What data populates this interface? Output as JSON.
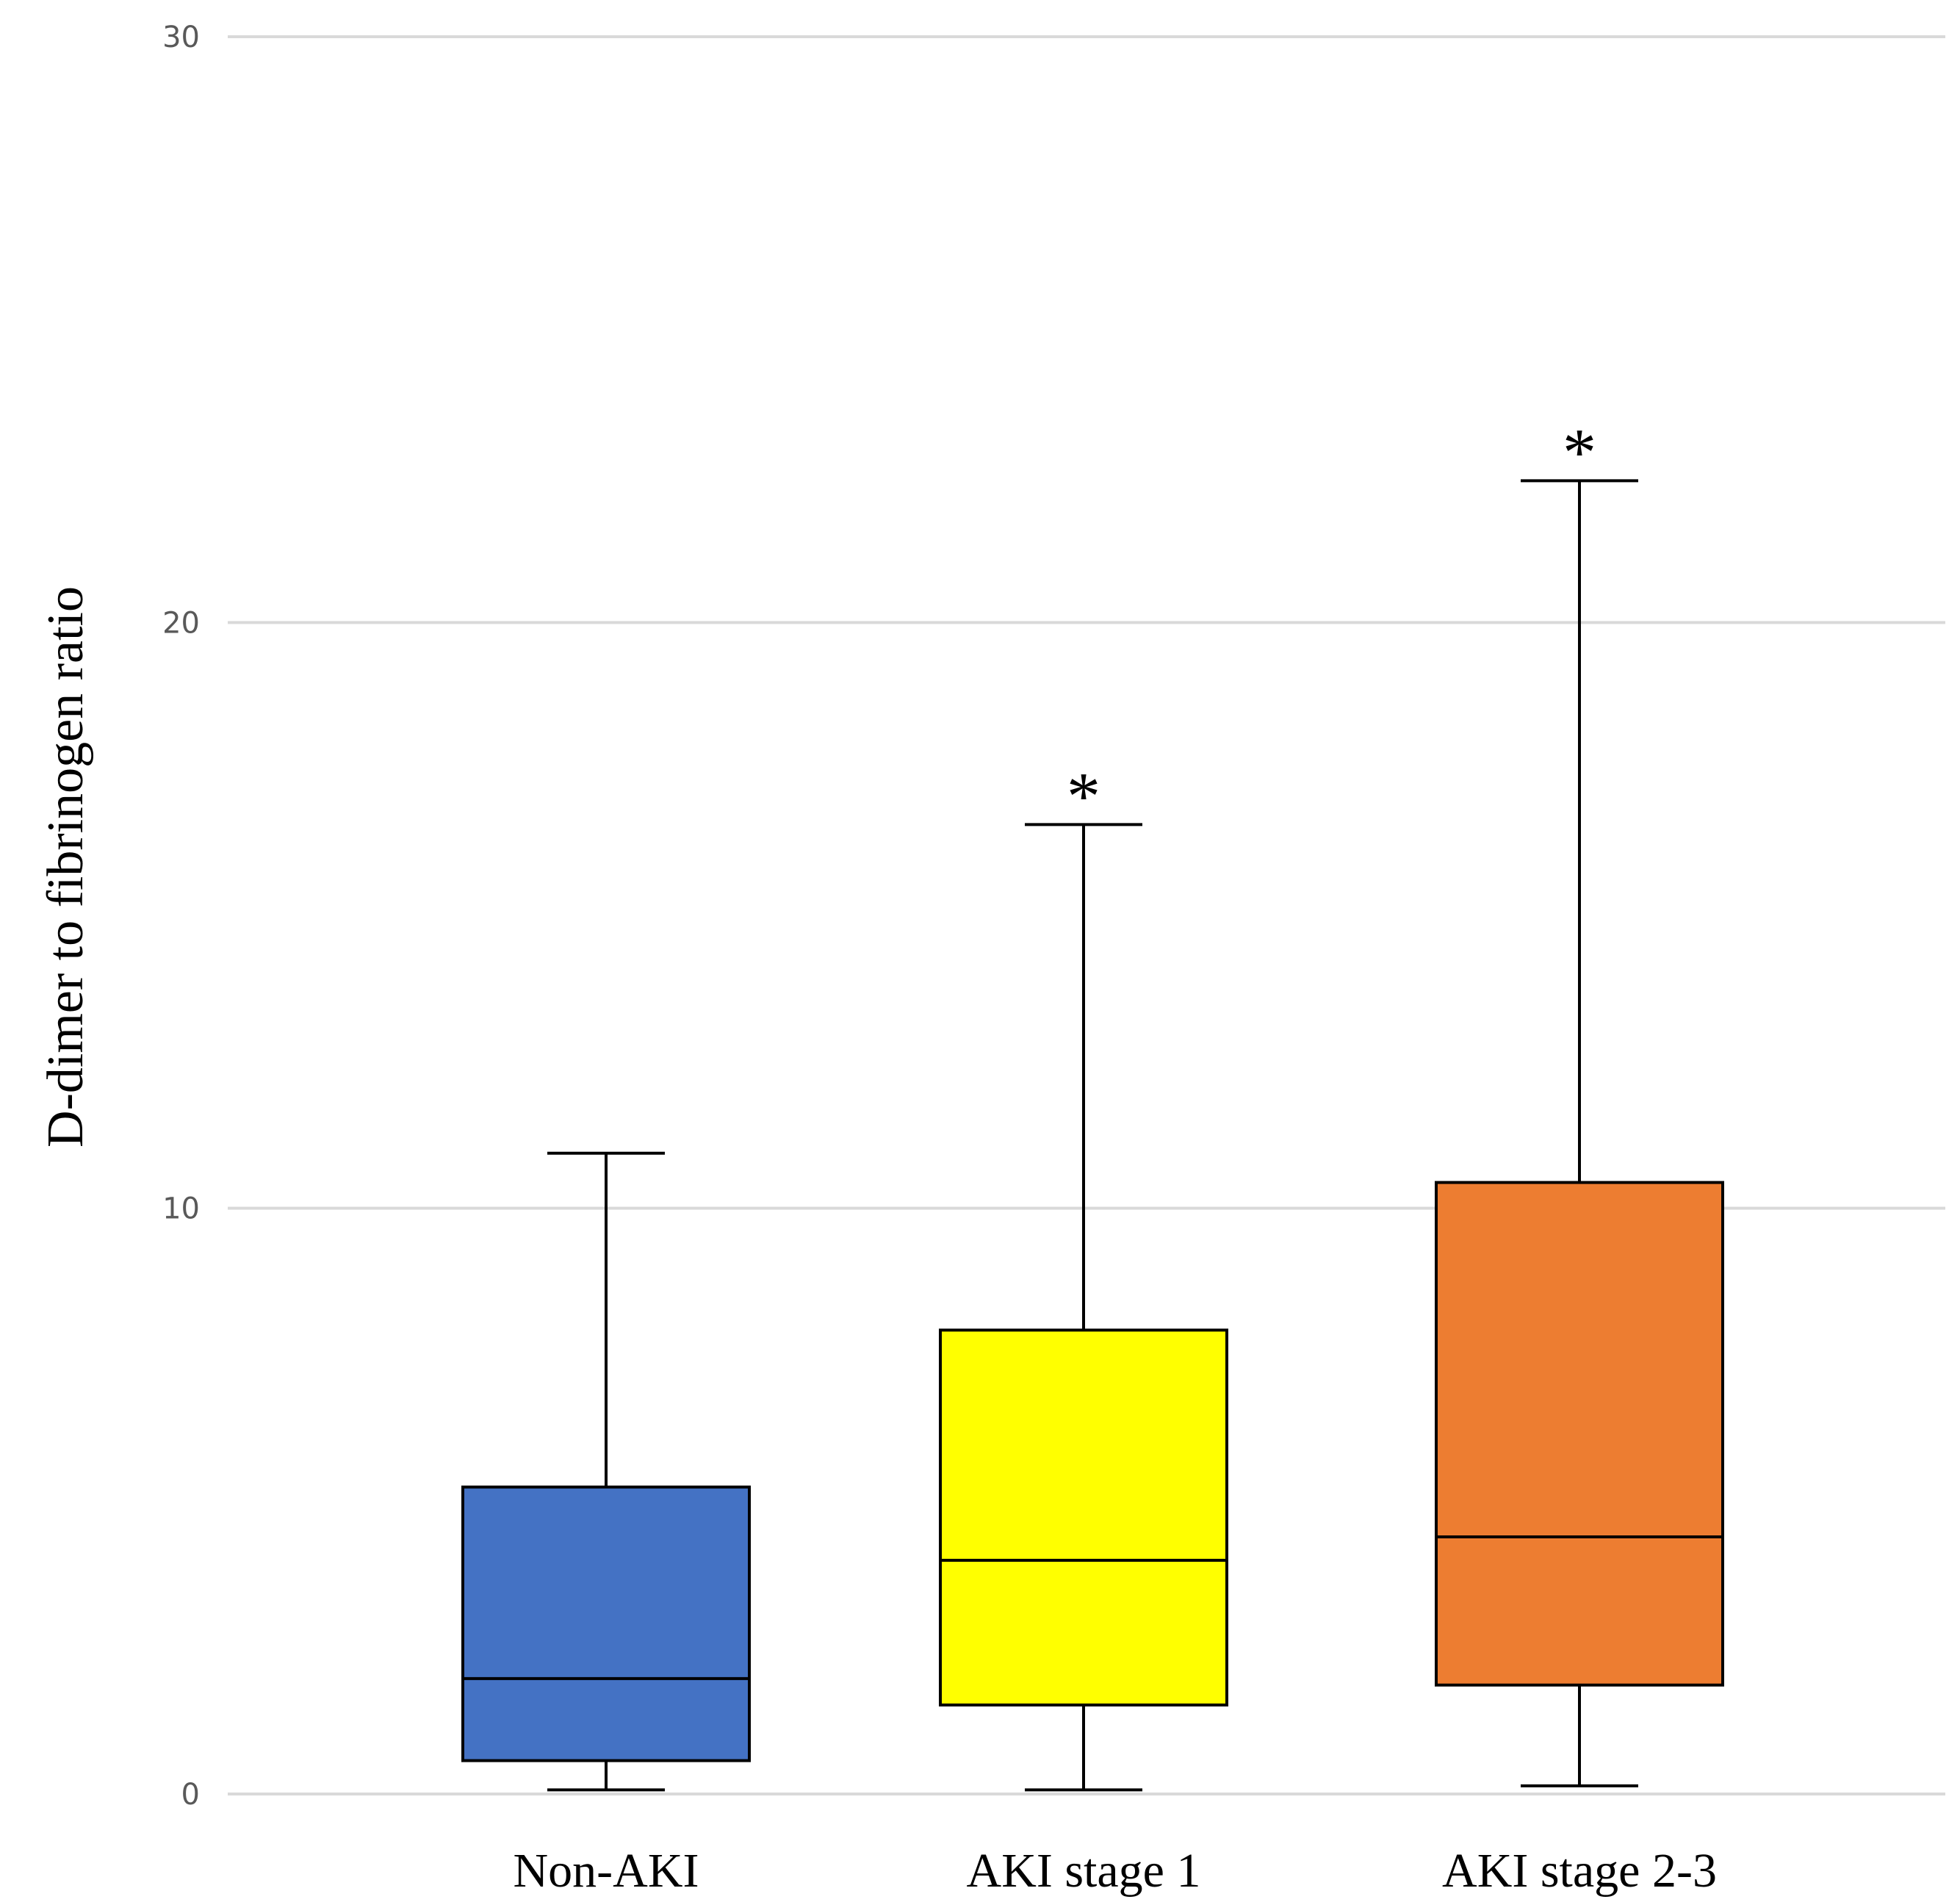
{
  "chart_data": {
    "type": "box",
    "title": "",
    "xlabel": "",
    "ylabel": "D-dimer to fibrinogen ratio",
    "ylim": [
      0,
      30
    ],
    "yticks": [
      0,
      10,
      20,
      30
    ],
    "grid": true,
    "categories": [
      "Non-AKI",
      "AKI stage 1",
      "AKI stage 2-3"
    ],
    "boxes": [
      {
        "name": "Non-AKI",
        "whisker_low": 0.07,
        "q1": 0.57,
        "median": 1.97,
        "q3": 5.24,
        "whisker_high": 10.94,
        "color": "#4472C4",
        "annotation": ""
      },
      {
        "name": "AKI stage 1",
        "whisker_low": 0.07,
        "q1": 1.52,
        "median": 3.99,
        "q3": 7.92,
        "whisker_high": 16.55,
        "color": "#FFFF00",
        "annotation": "*"
      },
      {
        "name": "AKI stage 2-3",
        "whisker_low": 0.14,
        "q1": 1.86,
        "median": 4.39,
        "q3": 10.44,
        "whisker_high": 22.42,
        "color": "#ED7D31",
        "annotation": "*"
      }
    ]
  }
}
